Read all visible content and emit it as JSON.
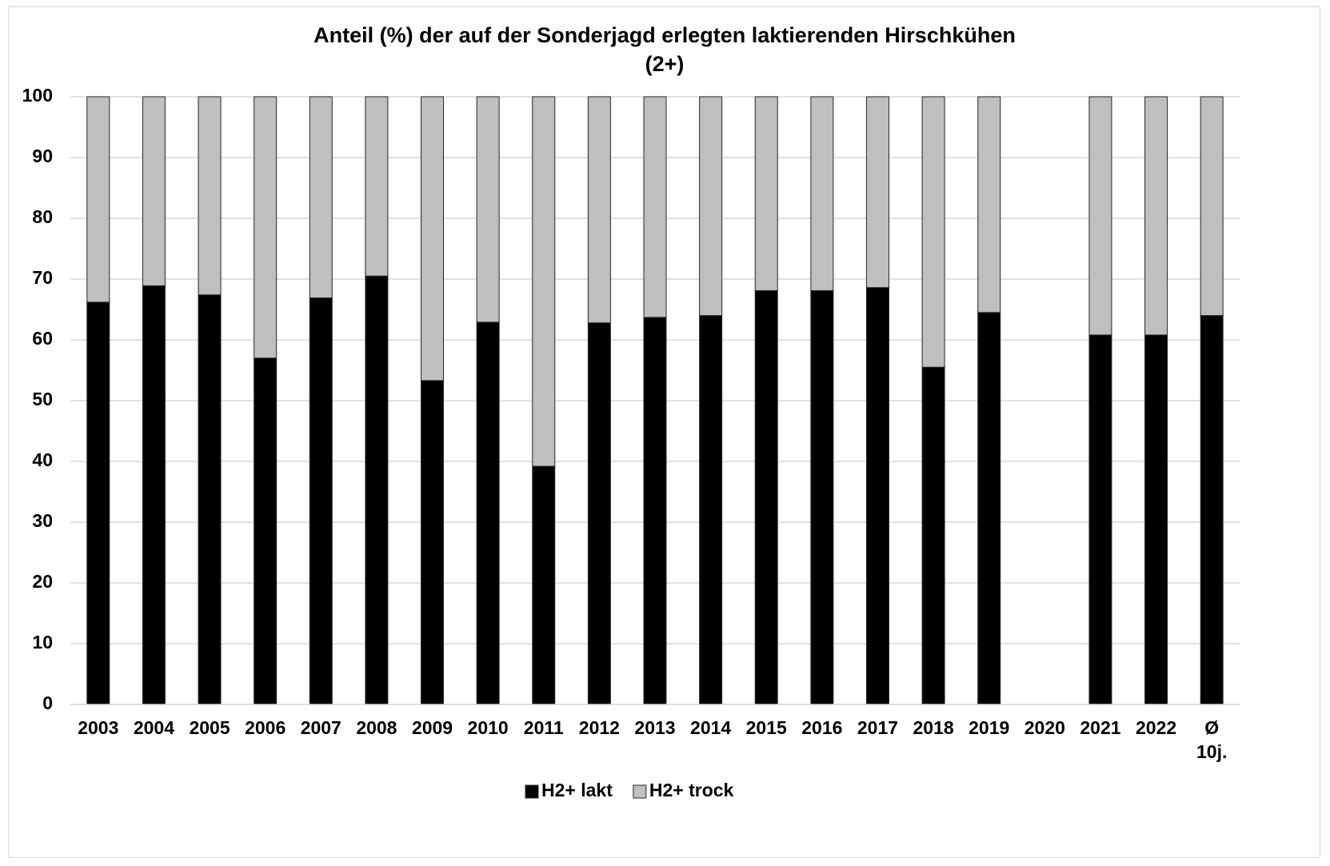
{
  "chart_data": {
    "type": "stacked_bar",
    "title": "Anteil (%) der auf der Sonderjagd erlegten laktierenden Hirschkühen (2+)",
    "categories": [
      "2003",
      "2004",
      "2005",
      "2006",
      "2007",
      "2008",
      "2009",
      "2010",
      "2011",
      "2012",
      "2013",
      "2014",
      "2015",
      "2016",
      "2017",
      "2018",
      "2019",
      "2020",
      "2021",
      "2022",
      "Ø 10j."
    ],
    "series": [
      {
        "name": "H2+ lakt",
        "color": "#000000",
        "values": [
          66.2,
          68.9,
          67.4,
          57.0,
          66.9,
          70.5,
          53.3,
          62.9,
          39.2,
          62.8,
          63.7,
          64.0,
          68.1,
          68.1,
          68.6,
          55.5,
          64.5,
          null,
          60.8,
          60.8,
          64.0
        ]
      },
      {
        "name": "H2+ trock",
        "color": "#bfbfbf",
        "values": [
          33.8,
          31.1,
          32.6,
          43.0,
          33.1,
          29.5,
          46.7,
          37.1,
          60.8,
          37.2,
          36.3,
          36.0,
          31.9,
          31.9,
          31.4,
          44.5,
          35.5,
          null,
          39.2,
          39.2,
          36.0
        ]
      }
    ],
    "ylim": [
      0,
      100
    ],
    "yticks": [
      0,
      10,
      20,
      30,
      40,
      50,
      60,
      70,
      80,
      90,
      100
    ],
    "grid": true,
    "legend": "bottom"
  }
}
